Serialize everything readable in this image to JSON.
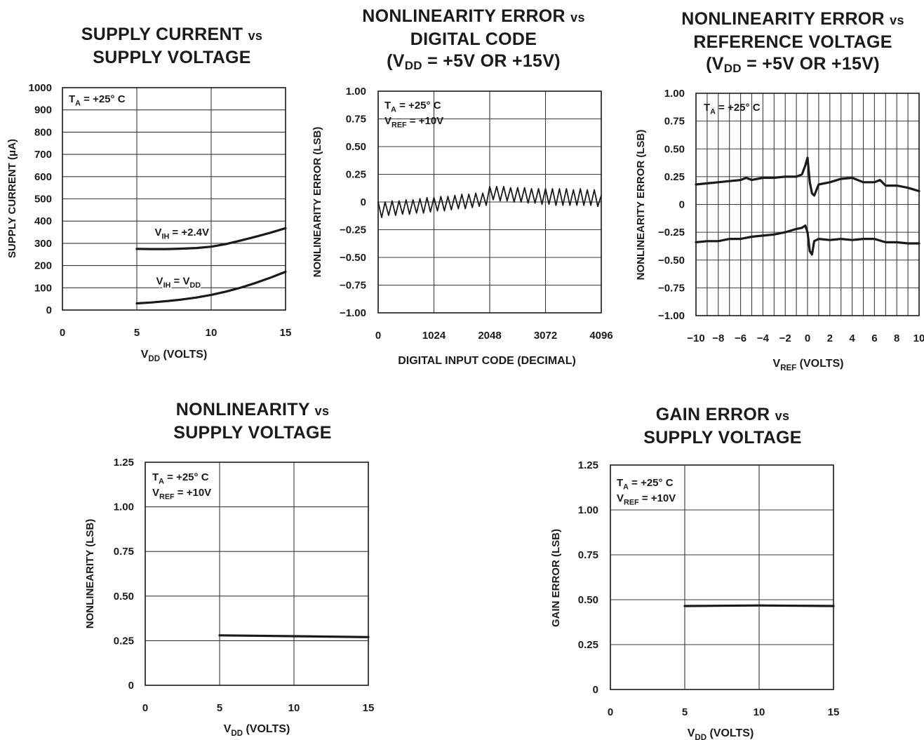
{
  "colors": {
    "ink": "#1a1a1a",
    "grid": "#3a3a3a",
    "paper": "#ffffff"
  },
  "chart_data": [
    {
      "id": "c1",
      "type": "line",
      "title": {
        "line1": "SUPPLY CURRENT",
        "vs": "vs",
        "line2": "SUPPLY VOLTAGE"
      },
      "xlabel": {
        "main": "V",
        "sub": "DD",
        "rest": " (VOLTS)"
      },
      "ylabel": {
        "text": "SUPPLY CURRENT (μA)"
      },
      "xlim": [
        0,
        15
      ],
      "ylim": [
        0,
        1000
      ],
      "x_ticks": [
        "0",
        "5",
        "10",
        "15"
      ],
      "x_tick_values": [
        0,
        5,
        10,
        15
      ],
      "y_ticks": [
        "0",
        "100",
        "200",
        "300",
        "400",
        "500",
        "600",
        "700",
        "800",
        "900",
        "1000"
      ],
      "y_tick_values": [
        0,
        100,
        200,
        300,
        400,
        500,
        600,
        700,
        800,
        900,
        1000
      ],
      "x_grid": [
        0,
        5,
        10,
        15
      ],
      "y_grid": [
        0,
        100,
        200,
        300,
        400,
        500,
        600,
        700,
        800,
        900,
        1000
      ],
      "conditions": [
        {
          "main": "T",
          "sub": "A",
          "rest": " = +25° C"
        }
      ],
      "series": [
        {
          "name": "VIH = +2.4V",
          "x": [
            5,
            6,
            7,
            8,
            9,
            10,
            11,
            12,
            13,
            14,
            15
          ],
          "y": [
            275,
            274,
            274,
            276,
            279,
            285,
            297,
            313,
            330,
            348,
            368
          ]
        },
        {
          "name": "VIH = VDD",
          "x": [
            5,
            6,
            7,
            8,
            9,
            10,
            11,
            12,
            13,
            14,
            15
          ],
          "y": [
            30,
            34,
            40,
            47,
            56,
            68,
            83,
            101,
            122,
            146,
            172
          ]
        }
      ],
      "series_labels": [
        {
          "main": "V",
          "sub": "IH",
          "rest": " = +2.4V",
          "at": [
            6.2,
            335
          ]
        },
        {
          "main": "V",
          "sub": "IH",
          "rest": " = V",
          "sub2": "DD",
          "at": [
            6.3,
            115
          ]
        }
      ]
    },
    {
      "id": "c2",
      "type": "line",
      "title": {
        "line1": "NONLINEARITY ERROR",
        "vs": "vs",
        "line2": "DIGITAL CODE",
        "line3a": "(V",
        "line3sub": "DD",
        "line3b": " = +5V OR +15V)"
      },
      "xlabel": {
        "main": "DIGITAL INPUT CODE (DECIMAL)"
      },
      "ylabel": {
        "text": "NONLINEARITY ERROR (LSB)"
      },
      "xlim": [
        0,
        4096
      ],
      "ylim": [
        -1,
        1
      ],
      "x_ticks": [
        "0",
        "1024",
        "2048",
        "3072",
        "4096"
      ],
      "x_tick_values": [
        0,
        1024,
        2048,
        3072,
        4096
      ],
      "y_ticks": [
        "1.00",
        "0.75",
        "0.50",
        "0.25",
        "0",
        "−0.25",
        "−0.50",
        "−0.75",
        "−1.00"
      ],
      "y_tick_values": [
        1,
        0.75,
        0.5,
        0.25,
        0,
        -0.25,
        -0.5,
        -0.75,
        -1
      ],
      "x_grid": [
        0,
        1024,
        2048,
        3072,
        4096
      ],
      "y_grid": [
        -1,
        -0.75,
        -0.5,
        -0.25,
        0,
        0.25,
        0.5,
        0.75,
        1
      ],
      "conditions": [
        {
          "main": "T",
          "sub": "A",
          "rest": " = +25° C"
        },
        {
          "main": "V",
          "sub": "REF",
          "rest": " = +10V"
        }
      ],
      "series": [
        {
          "name": "",
          "x": [
            0,
            64,
            128,
            192,
            256,
            320,
            384,
            448,
            512,
            576,
            640,
            704,
            768,
            832,
            896,
            960,
            1024,
            1088,
            1152,
            1216,
            1280,
            1344,
            1408,
            1472,
            1536,
            1600,
            1664,
            1728,
            1792,
            1856,
            1920,
            1984,
            2048,
            2112,
            2176,
            2240,
            2304,
            2368,
            2432,
            2496,
            2560,
            2624,
            2688,
            2752,
            2816,
            2880,
            2944,
            3008,
            3072,
            3136,
            3200,
            3264,
            3328,
            3392,
            3456,
            3520,
            3584,
            3648,
            3712,
            3776,
            3840,
            3904,
            3968,
            4032,
            4096
          ],
          "y": [
            0,
            -0.14,
            0,
            -0.12,
            0.01,
            -0.12,
            0.01,
            -0.11,
            0.02,
            -0.11,
            0.02,
            -0.1,
            0.03,
            -0.1,
            0.04,
            -0.09,
            0.04,
            -0.08,
            0.05,
            -0.08,
            0.05,
            -0.07,
            0.06,
            -0.06,
            0.07,
            -0.06,
            0.07,
            -0.05,
            0.08,
            -0.04,
            0.08,
            -0.03,
            0.14,
            0.02,
            0.14,
            0.01,
            0.14,
            0.01,
            0.13,
            0,
            0.13,
            0,
            0.13,
            -0.01,
            0.12,
            -0.01,
            0.12,
            -0.02,
            0.12,
            -0.02,
            0.12,
            -0.03,
            0.12,
            -0.03,
            0.12,
            -0.03,
            0.11,
            -0.03,
            0.12,
            -0.03,
            0.11,
            -0.03,
            0.11,
            -0.04,
            0.06
          ]
        }
      ]
    },
    {
      "id": "c3",
      "type": "line",
      "title": {
        "line1": "NONLINEARITY ERROR",
        "vs": "vs",
        "line2": "REFERENCE VOLTAGE",
        "line3a": "(V",
        "line3sub": "DD",
        "line3b": " = +5V OR +15V)"
      },
      "xlabel": {
        "main": "V",
        "sub": "REF",
        "rest": " (VOLTS)"
      },
      "ylabel": {
        "text": "NONLINEARITY ERROR (LSB)"
      },
      "xlim": [
        -10,
        10
      ],
      "ylim": [
        -1,
        1
      ],
      "x_ticks": [
        "−10",
        "−8",
        "−6",
        "−4",
        "−2",
        "0",
        "2",
        "4",
        "6",
        "8",
        "10"
      ],
      "x_tick_values": [
        -10,
        -8,
        -6,
        -4,
        -2,
        0,
        2,
        4,
        6,
        8,
        10
      ],
      "y_ticks": [
        "1.00",
        "0.75",
        "0.50",
        "0.25",
        "0",
        "−0.25",
        "−0.50",
        "−0.75",
        "−1.00"
      ],
      "y_tick_values": [
        1,
        0.75,
        0.5,
        0.25,
        0,
        -0.25,
        -0.5,
        -0.75,
        -1
      ],
      "x_grid": [
        -10,
        -9,
        -8,
        -7,
        -6,
        -5,
        -4,
        -3,
        -2,
        -1,
        0,
        1,
        2,
        3,
        4,
        5,
        6,
        7,
        8,
        9,
        10
      ],
      "y_grid": [
        -1,
        -0.75,
        -0.5,
        -0.25,
        0,
        0.25,
        0.5,
        0.75,
        1
      ],
      "conditions": [
        {
          "main": "T",
          "sub": "A",
          "rest": " = +25° C"
        }
      ],
      "series": [
        {
          "name": "",
          "x": [
            -10,
            -9,
            -8,
            -7,
            -6,
            -5.5,
            -5,
            -4,
            -3,
            -2,
            -1,
            -0.5,
            -0.2,
            0,
            0.2,
            0.4,
            0.6,
            1,
            2,
            3,
            4,
            5,
            6,
            6.5,
            7,
            8,
            9,
            10
          ],
          "y": [
            0.18,
            0.19,
            0.2,
            0.21,
            0.22,
            0.24,
            0.22,
            0.24,
            0.24,
            0.25,
            0.25,
            0.27,
            0.35,
            0.42,
            0.2,
            0.1,
            0.08,
            0.18,
            0.2,
            0.23,
            0.24,
            0.2,
            0.2,
            0.22,
            0.17,
            0.17,
            0.15,
            0.12
          ]
        },
        {
          "name": "",
          "x": [
            -10,
            -9,
            -8,
            -7,
            -6,
            -5,
            -4,
            -3,
            -2,
            -1,
            -0.5,
            -0.2,
            0,
            0.2,
            0.4,
            0.6,
            1,
            2,
            3,
            4,
            5,
            6,
            7,
            8,
            9,
            10
          ],
          "y": [
            -0.34,
            -0.33,
            -0.33,
            -0.31,
            -0.31,
            -0.29,
            -0.28,
            -0.27,
            -0.25,
            -0.22,
            -0.21,
            -0.19,
            -0.25,
            -0.42,
            -0.45,
            -0.33,
            -0.31,
            -0.32,
            -0.31,
            -0.32,
            -0.31,
            -0.31,
            -0.34,
            -0.34,
            -0.35,
            -0.35
          ]
        }
      ]
    },
    {
      "id": "c4",
      "type": "line",
      "title": {
        "line1": "NONLINEARITY",
        "vs": "vs",
        "line2": "SUPPLY VOLTAGE"
      },
      "xlabel": {
        "main": "V",
        "sub": "DD",
        "rest": " (VOLTS)"
      },
      "ylabel": {
        "text": "NONLINEARITY (LSB)"
      },
      "xlim": [
        0,
        15
      ],
      "ylim": [
        0,
        1.25
      ],
      "x_ticks": [
        "0",
        "5",
        "10",
        "15"
      ],
      "x_tick_values": [
        0,
        5,
        10,
        15
      ],
      "y_ticks": [
        "0",
        "0.25",
        "0.50",
        "0.75",
        "1.00",
        "1.25"
      ],
      "y_tick_values": [
        0,
        0.25,
        0.5,
        0.75,
        1,
        1.25
      ],
      "x_grid": [
        0,
        5,
        10,
        15
      ],
      "y_grid": [
        0,
        0.25,
        0.5,
        0.75,
        1,
        1.25
      ],
      "conditions": [
        {
          "main": "T",
          "sub": "A",
          "rest": " = +25° C"
        },
        {
          "main": "V",
          "sub": "REF",
          "rest": " = +10V"
        }
      ],
      "series": [
        {
          "name": "",
          "x": [
            5,
            10,
            15
          ],
          "y": [
            0.28,
            0.275,
            0.27
          ]
        }
      ]
    },
    {
      "id": "c5",
      "type": "line",
      "title": {
        "line1": "GAIN ERROR",
        "vs": "vs",
        "line2": "SUPPLY VOLTAGE"
      },
      "xlabel": {
        "main": "V",
        "sub": "DD",
        "rest": " (VOLTS)"
      },
      "ylabel": {
        "text": "GAIN ERROR (LSB)"
      },
      "xlim": [
        0,
        15
      ],
      "ylim": [
        0,
        1.25
      ],
      "x_ticks": [
        "0",
        "5",
        "10",
        "15"
      ],
      "x_tick_values": [
        0,
        5,
        10,
        15
      ],
      "y_ticks": [
        "0",
        "0.25",
        "0.50",
        "0.75",
        "1.00",
        "1.25"
      ],
      "y_tick_values": [
        0,
        0.25,
        0.5,
        0.75,
        1,
        1.25
      ],
      "x_grid": [
        0,
        5,
        10,
        15
      ],
      "y_grid": [
        0,
        0.25,
        0.5,
        0.75,
        1,
        1.25
      ],
      "conditions": [
        {
          "main": "T",
          "sub": "A",
          "rest": " = +25° C"
        },
        {
          "main": "V",
          "sub": "REF",
          "rest": " = +10V"
        }
      ],
      "series": [
        {
          "name": "",
          "x": [
            5,
            10,
            15
          ],
          "y": [
            0.465,
            0.468,
            0.465
          ]
        }
      ]
    }
  ]
}
